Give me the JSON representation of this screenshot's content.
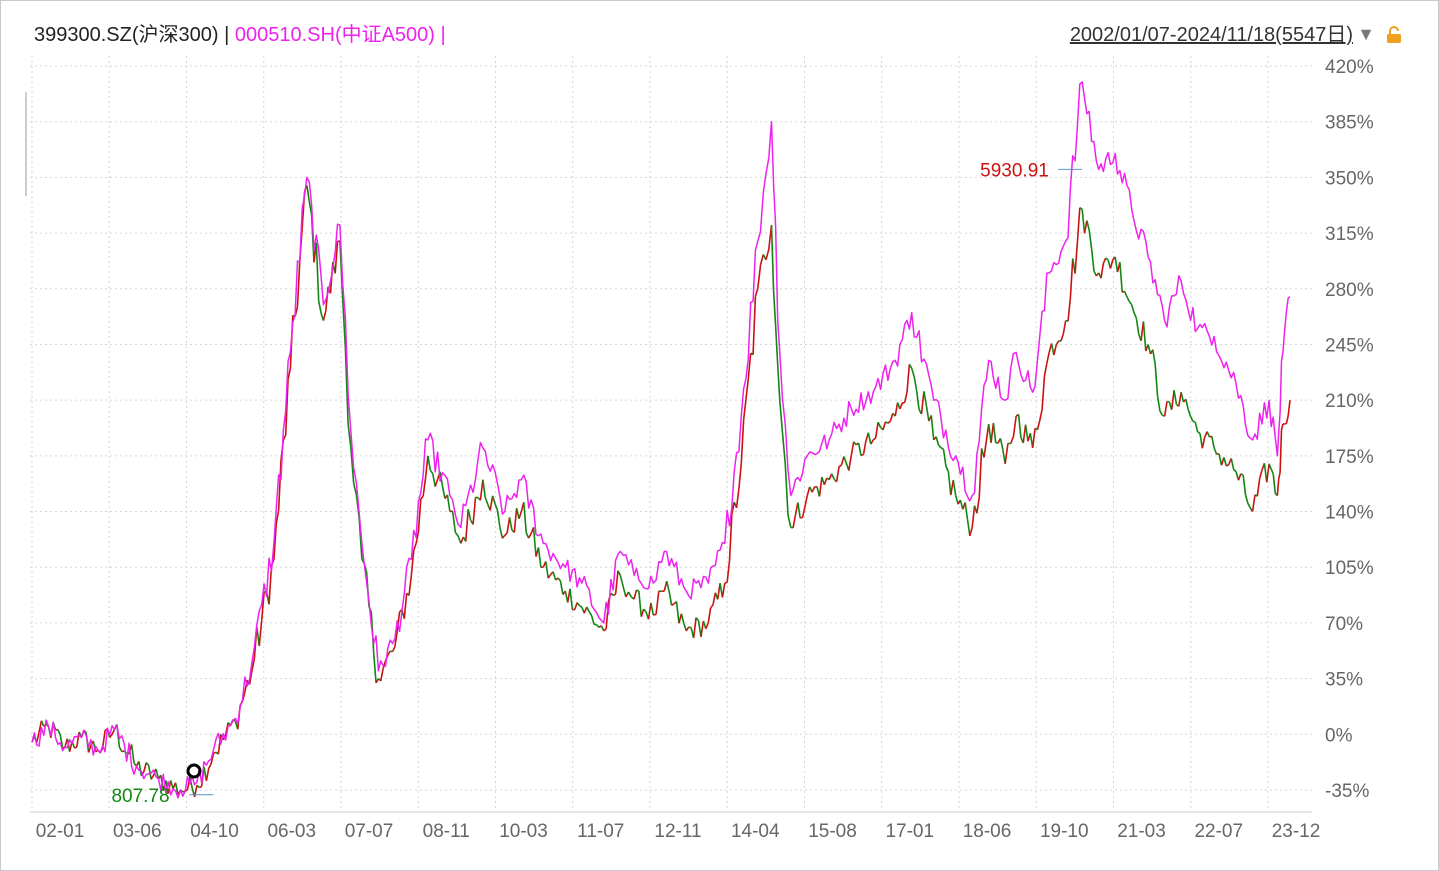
{
  "header": {
    "series_a_label": "399300.SZ(沪深300)",
    "separator": " | ",
    "series_b_label": "000510.SH(中证A500)",
    "trailing": " |",
    "date_range": "2002/01/07-2024/11/18(5547日)"
  },
  "icons": {
    "dropdown": "caret-down-icon",
    "lock": "lock-icon"
  },
  "colors": {
    "series_a_up": "#cc1111",
    "series_a_down": "#118811",
    "series_b": "#ee22ee",
    "grid": "#d6d6d6"
  },
  "chart_data": {
    "type": "line",
    "ylim": [
      -45,
      425
    ],
    "y_ticks": [
      "420%",
      "385%",
      "350%",
      "315%",
      "280%",
      "245%",
      "210%",
      "175%",
      "140%",
      "105%",
      "70%",
      "35%",
      "0%",
      "-35%"
    ],
    "x_ticks": [
      "02-01",
      "03-06",
      "04-10",
      "06-03",
      "07-07",
      "08-11",
      "10-03",
      "11-07",
      "12-11",
      "14-04",
      "15-08",
      "17-01",
      "18-06",
      "19-10",
      "21-03",
      "22-07",
      "23-12"
    ],
    "annotations": [
      {
        "text": "5930.91",
        "x": 2021.1,
        "y": 355,
        "color": "#cc1111"
      },
      {
        "text": "807.78",
        "x": 2005.3,
        "y": -38,
        "color": "#118811"
      }
    ],
    "series": [
      {
        "name": "000510.SH(中证A500)",
        "x": [
          2002.0,
          2002.3,
          2002.6,
          2002.9,
          2003.2,
          2003.5,
          2003.9,
          2004.3,
          2004.7,
          2005.0,
          2005.3,
          2005.7,
          2006.0,
          2006.4,
          2006.7,
          2007.0,
          2007.3,
          2007.6,
          2007.8,
          2008.0,
          2008.3,
          2008.6,
          2008.9,
          2009.2,
          2009.6,
          2009.8,
          2010.2,
          2010.6,
          2010.9,
          2011.3,
          2011.7,
          2012.0,
          2012.4,
          2012.7,
          2012.95,
          2013.3,
          2013.5,
          2013.9,
          2014.3,
          2014.6,
          2014.9,
          2015.2,
          2015.45,
          2015.6,
          2015.8,
          2016.1,
          2016.5,
          2016.9,
          2017.3,
          2017.7,
          2018.0,
          2018.4,
          2018.8,
          2019.1,
          2019.4,
          2019.7,
          2019.9,
          2020.2,
          2020.5,
          2020.8,
          2021.1,
          2021.4,
          2021.7,
          2022.0,
          2022.3,
          2022.6,
          2022.9,
          2023.2,
          2023.5,
          2023.9,
          2024.2,
          2024.5,
          2024.65,
          2024.75,
          2024.88
        ],
        "y": [
          -5,
          5,
          -8,
          -2,
          -10,
          3,
          -20,
          -28,
          -35,
          -30,
          -10,
          10,
          45,
          120,
          240,
          350,
          270,
          320,
          190,
          120,
          40,
          60,
          110,
          185,
          150,
          130,
          180,
          140,
          160,
          120,
          105,
          95,
          70,
          115,
          100,
          95,
          115,
          90,
          95,
          120,
          200,
          310,
          385,
          240,
          150,
          175,
          185,
          205,
          215,
          235,
          265,
          210,
          175,
          150,
          235,
          210,
          240,
          215,
          290,
          310,
          410,
          355,
          365,
          330,
          300,
          260,
          285,
          255,
          250,
          220,
          185,
          210,
          175,
          240,
          275
        ]
      },
      {
        "name": "399300.SZ(沪深300)",
        "x": [
          2002.0,
          2002.3,
          2002.6,
          2002.9,
          2003.2,
          2003.5,
          2003.9,
          2004.3,
          2004.7,
          2005.0,
          2005.3,
          2005.7,
          2006.0,
          2006.4,
          2006.7,
          2007.0,
          2007.3,
          2007.6,
          2007.8,
          2008.0,
          2008.3,
          2008.6,
          2008.9,
          2009.2,
          2009.6,
          2009.8,
          2010.2,
          2010.6,
          2010.9,
          2011.3,
          2011.7,
          2012.0,
          2012.4,
          2012.7,
          2012.95,
          2013.3,
          2013.5,
          2013.9,
          2014.3,
          2014.6,
          2014.9,
          2015.2,
          2015.45,
          2015.6,
          2015.8,
          2016.1,
          2016.5,
          2016.9,
          2017.3,
          2017.7,
          2018.0,
          2018.4,
          2018.8,
          2019.1,
          2019.4,
          2019.7,
          2019.9,
          2020.2,
          2020.5,
          2020.8,
          2021.1,
          2021.4,
          2021.7,
          2022.0,
          2022.3,
          2022.6,
          2022.9,
          2023.2,
          2023.5,
          2023.9,
          2024.2,
          2024.5,
          2024.65,
          2024.75,
          2024.88
        ],
        "y": [
          -5,
          5,
          -8,
          -2,
          -10,
          3,
          -20,
          -28,
          -35,
          -32,
          -12,
          8,
          40,
          110,
          230,
          345,
          260,
          310,
          180,
          110,
          35,
          55,
          100,
          175,
          140,
          120,
          160,
          125,
          140,
          105,
          90,
          80,
          65,
          100,
          85,
          75,
          90,
          65,
          70,
          95,
          170,
          280,
          320,
          210,
          130,
          150,
          160,
          175,
          185,
          200,
          230,
          185,
          150,
          130,
          195,
          170,
          200,
          180,
          240,
          260,
          330,
          290,
          300,
          270,
          245,
          200,
          215,
          190,
          180,
          165,
          140,
          170,
          150,
          195,
          210
        ]
      }
    ]
  }
}
